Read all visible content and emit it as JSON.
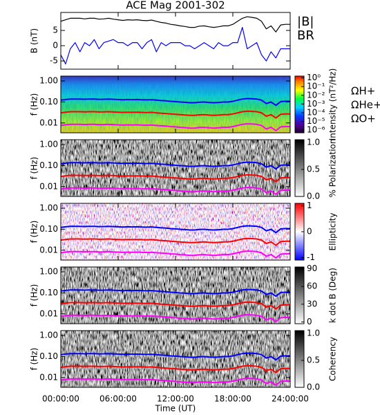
{
  "chart_data": [
    {
      "type": "line",
      "title": "ACE Mag 2001-302",
      "ylabel": "B (nT)",
      "x": [
        0,
        0.5,
        1,
        1.5,
        2,
        2.5,
        3,
        3.5,
        4,
        4.5,
        5,
        5.5,
        6,
        6.5,
        7,
        7.5,
        8,
        8.5,
        9,
        9.5,
        10,
        10.5,
        11,
        11.5,
        12,
        12.5,
        13,
        13.5,
        14,
        14.5,
        15,
        15.5,
        16,
        16.5,
        17,
        17.5,
        18,
        18.5,
        19,
        19.5,
        20,
        20.5,
        21,
        21.5,
        22,
        22.5,
        23,
        23.5,
        24
      ],
      "series": [
        {
          "name": "|B|",
          "color": "#000000",
          "values": [
            8,
            8.5,
            9,
            9,
            9,
            8.8,
            9,
            9,
            8.7,
            8.8,
            9,
            8.7,
            8.5,
            8.3,
            8.5,
            8.4,
            8.5,
            8.3,
            8.2,
            8.4,
            8,
            7.6,
            7.4,
            7,
            6.8,
            6.5,
            6.3,
            6,
            6,
            6.4,
            6.5,
            6.2,
            6,
            6.2,
            6.5,
            6.5,
            7,
            8,
            9,
            9.5,
            9.3,
            9,
            8,
            5.5,
            6.5,
            4.5,
            6.8,
            7,
            7
          ]
        },
        {
          "name": "BR",
          "color": "#0000ff",
          "values": [
            -3,
            -6,
            -1,
            1,
            -2,
            1,
            0,
            2,
            -1,
            1,
            1.5,
            2,
            1,
            1,
            0,
            1,
            1,
            -1,
            1,
            2,
            -2,
            1,
            0,
            1,
            1,
            1,
            0,
            0,
            -1,
            0,
            1,
            0,
            -1,
            1,
            0,
            0,
            1,
            1,
            6,
            -1,
            0,
            1,
            -3,
            -5,
            -2,
            -4,
            -1,
            -1,
            -1
          ]
        }
      ],
      "ylim": [
        -7.7,
        10.9
      ],
      "yticks": [
        -5,
        0,
        5
      ]
    },
    {
      "type": "spectrogram",
      "ylabel": "f (Hz)",
      "ylog": true,
      "ylim": [
        0.0034,
        1.7
      ],
      "yticks": [
        {
          "value": 1,
          "label": "1.00"
        },
        {
          "value": 0.1,
          "label": "0.10"
        },
        {
          "value": 0.01,
          "label": "0.01"
        }
      ],
      "colormap": "rainbow",
      "colorbar_label": "Intensity (nT²/Hz)",
      "cblog": true,
      "cblim": [
        5e-07,
        1.6
      ],
      "cbticks": [
        {
          "value": 1,
          "label": "10⁰"
        },
        {
          "value": 0.1,
          "label": "10⁻¹"
        },
        {
          "value": 0.01,
          "label": "10⁻²"
        },
        {
          "value": 0.001,
          "label": "10⁻³"
        },
        {
          "value": 0.0001,
          "label": "10⁻⁴"
        },
        {
          "value": 1e-05,
          "label": "10⁻⁵"
        },
        {
          "value": 1e-06,
          "label": "10⁻⁶"
        }
      ],
      "series": [
        {
          "name": "ΩH+",
          "color": "#0000ff",
          "values": [
            0.122,
            0.13,
            0.137,
            0.137,
            0.137,
            0.134,
            0.137,
            0.137,
            0.133,
            0.134,
            0.137,
            0.133,
            0.13,
            0.127,
            0.13,
            0.128,
            0.13,
            0.127,
            0.125,
            0.128,
            0.122,
            0.116,
            0.113,
            0.107,
            0.104,
            0.099,
            0.096,
            0.092,
            0.092,
            0.098,
            0.099,
            0.095,
            0.092,
            0.095,
            0.099,
            0.099,
            0.107,
            0.122,
            0.137,
            0.145,
            0.142,
            0.137,
            0.122,
            0.084,
            0.099,
            0.069,
            0.104,
            0.107,
            0.107
          ]
        },
        {
          "name": "ΩHe+",
          "color": "#ff0000",
          "values": [
            0.0305,
            0.0325,
            0.0343,
            0.0343,
            0.0343,
            0.0335,
            0.0343,
            0.0343,
            0.0332,
            0.0335,
            0.0343,
            0.0332,
            0.0325,
            0.0317,
            0.0325,
            0.032,
            0.0325,
            0.0317,
            0.0313,
            0.032,
            0.0305,
            0.029,
            0.0282,
            0.0267,
            0.026,
            0.0248,
            0.024,
            0.0229,
            0.0229,
            0.0244,
            0.0248,
            0.0236,
            0.0229,
            0.0236,
            0.0248,
            0.0248,
            0.0267,
            0.0305,
            0.0343,
            0.0362,
            0.0355,
            0.0343,
            0.0305,
            0.021,
            0.0248,
            0.0172,
            0.026,
            0.0267,
            0.0267
          ]
        },
        {
          "name": "ΩO+",
          "color": "#ff00ff",
          "values": [
            0.0076,
            0.0081,
            0.0086,
            0.0086,
            0.0086,
            0.0084,
            0.0086,
            0.0086,
            0.0083,
            0.0084,
            0.0086,
            0.0083,
            0.0081,
            0.0079,
            0.0081,
            0.008,
            0.0081,
            0.0079,
            0.0078,
            0.008,
            0.0076,
            0.0073,
            0.0071,
            0.0067,
            0.0065,
            0.0062,
            0.006,
            0.0057,
            0.0057,
            0.0061,
            0.0062,
            0.0059,
            0.0057,
            0.0059,
            0.0062,
            0.0062,
            0.0067,
            0.0076,
            0.0086,
            0.0091,
            0.0089,
            0.0086,
            0.0076,
            0.0052,
            0.0062,
            0.0043,
            0.0065,
            0.0067,
            0.0067
          ]
        }
      ]
    },
    {
      "type": "spectrogram",
      "ylabel": "f (Hz)",
      "ylog": true,
      "ylim": [
        0.0034,
        1.7
      ],
      "yticks": [
        {
          "value": 1,
          "label": "1.00"
        },
        {
          "value": 0.1,
          "label": "0.10"
        },
        {
          "value": 0.01,
          "label": "0.01"
        }
      ],
      "colormap": "gray",
      "colorbar_label": "% Polarization",
      "cblim": [
        0,
        1.05
      ],
      "cbticks": [
        {
          "value": 1,
          "label": "1.0"
        },
        {
          "value": 0.5,
          "label": "0.5"
        },
        {
          "value": 0,
          "label": "0.0"
        }
      ]
    },
    {
      "type": "spectrogram",
      "ylabel": "f (Hz)",
      "ylog": true,
      "ylim": [
        0.0034,
        1.7
      ],
      "yticks": [
        {
          "value": 1,
          "label": "1.00"
        },
        {
          "value": 0.1,
          "label": "0.10"
        },
        {
          "value": 0.01,
          "label": "0.01"
        }
      ],
      "colormap": "bluewhitered",
      "colorbar_label": "Ellipticity",
      "cblim": [
        -1.1,
        1.1
      ],
      "cbticks": [
        1,
        0,
        -1
      ]
    },
    {
      "type": "spectrogram",
      "ylabel": "f (Hz)",
      "ylog": true,
      "ylim": [
        0.0034,
        1.7
      ],
      "yticks": [
        {
          "value": 1,
          "label": "1.00"
        },
        {
          "value": 0.1,
          "label": "0.10"
        },
        {
          "value": 0.01,
          "label": "0.01"
        }
      ],
      "colormap": "gray",
      "colorbar_label": "k dot B (Deg)",
      "cblim": [
        -3,
        93
      ],
      "cbticks": [
        90,
        60,
        30,
        0
      ]
    },
    {
      "type": "spectrogram",
      "ylabel": "f (Hz)",
      "ylog": true,
      "ylim": [
        0.0034,
        1.7
      ],
      "yticks": [
        {
          "value": 1,
          "label": "1.00"
        },
        {
          "value": 0.1,
          "label": "0.10"
        },
        {
          "value": 0.01,
          "label": "0.01"
        }
      ],
      "colormap": "gray",
      "colorbar_label": "Coherency",
      "cblim": [
        0,
        1.05
      ],
      "cbticks": [
        {
          "value": 1,
          "label": "1.0"
        },
        {
          "value": 0.5,
          "label": "0.5"
        },
        {
          "value": 0,
          "label": "0.0"
        }
      ],
      "xlabel": "Time (UT)",
      "xlim": [
        0,
        24
      ],
      "xticks": [
        {
          "value": 0,
          "label": "00:00:00"
        },
        {
          "value": 6,
          "label": "06:00:00"
        },
        {
          "value": 12,
          "label": "12:00:00"
        },
        {
          "value": 18,
          "label": "18:00:00"
        },
        {
          "value": 24,
          "label": "24:00:00"
        }
      ]
    }
  ]
}
